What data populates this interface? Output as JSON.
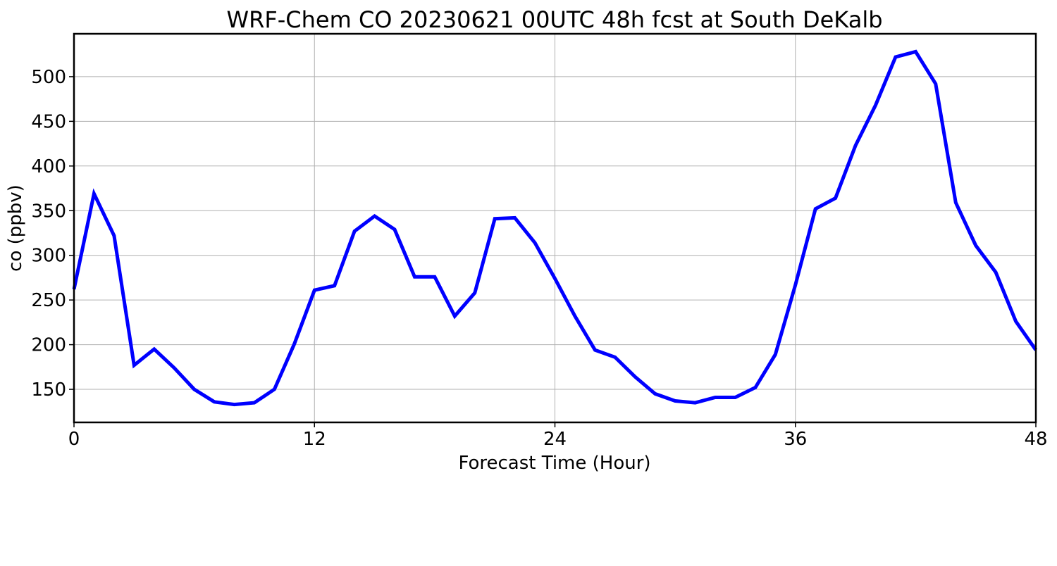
{
  "chart_data": {
    "type": "line",
    "title": "WRF-Chem CO  20230621 00UTC 48h fcst at South DeKalb",
    "xlabel": "Forecast Time (Hour)",
    "ylabel": "co  (ppbv)",
    "xlim": [
      0,
      48
    ],
    "ylim": [
      113,
      548
    ],
    "xticks": [
      0,
      12,
      24,
      36,
      48
    ],
    "yticks": [
      150,
      200,
      250,
      300,
      350,
      400,
      450,
      500
    ],
    "grid": true,
    "legend": "none",
    "series": [
      {
        "color": "#0000ff",
        "x": [
          0,
          1,
          2,
          3,
          4,
          5,
          6,
          7,
          8,
          9,
          10,
          11,
          12,
          13,
          14,
          15,
          16,
          17,
          18,
          19,
          20,
          21,
          22,
          23,
          24,
          25,
          26,
          27,
          28,
          29,
          30,
          31,
          32,
          33,
          34,
          35,
          36,
          37,
          38,
          39,
          40,
          41,
          42,
          43,
          44,
          45,
          46,
          47,
          48
        ],
        "values": [
          262,
          369,
          322,
          177,
          195,
          174,
          150,
          136,
          133,
          135,
          150,
          201,
          261,
          266,
          327,
          344,
          329,
          276,
          276,
          232,
          258,
          341,
          342,
          314,
          274,
          232,
          194,
          186,
          164,
          145,
          137,
          135,
          141,
          141,
          152,
          189,
          267,
          352,
          364,
          423,
          468,
          522,
          528,
          492,
          359,
          311,
          281,
          226,
          194
        ]
      }
    ]
  }
}
